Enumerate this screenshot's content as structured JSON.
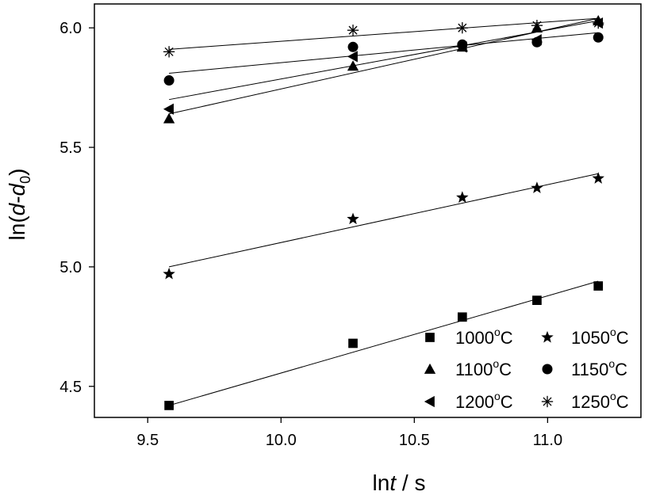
{
  "chart_data": {
    "type": "scatter",
    "xlabel": {
      "prefix": "ln",
      "var": "t",
      "suffix": " / s"
    },
    "ylabel": {
      "prefix": "ln(",
      "var1": "d",
      "mid": "-",
      "var2": "d",
      "sub": "0",
      "suffix": ")"
    },
    "xlim": [
      9.3,
      11.35
    ],
    "ylim": [
      4.37,
      6.1
    ],
    "x_ticks": [
      9.5,
      10.0,
      10.5,
      11.0
    ],
    "x_tick_labels": [
      "9.5",
      "10.0",
      "10.5",
      "11.0"
    ],
    "y_ticks": [
      4.5,
      5.0,
      5.5,
      6.0
    ],
    "y_tick_labels": [
      "4.5",
      "5.0",
      "5.5",
      "6.0"
    ],
    "grid": false,
    "legend_position": "bottom-right",
    "series": [
      {
        "name": "1000°C",
        "label": {
          "num": "1000",
          "deg": "o",
          "unit": "C"
        },
        "marker": "square",
        "x": [
          9.58,
          10.27,
          10.68,
          10.96,
          11.19
        ],
        "y": [
          4.42,
          4.68,
          4.79,
          4.86,
          4.92
        ],
        "fit": {
          "x": [
            9.58,
            11.19
          ],
          "y": [
            4.42,
            4.94
          ]
        }
      },
      {
        "name": "1050°C",
        "label": {
          "num": "1050",
          "deg": "o",
          "unit": "C"
        },
        "marker": "star",
        "x": [
          9.58,
          10.27,
          10.68,
          10.96,
          11.19
        ],
        "y": [
          4.97,
          5.2,
          5.29,
          5.33,
          5.37
        ],
        "fit": {
          "x": [
            9.58,
            11.19
          ],
          "y": [
            5.0,
            5.39
          ]
        }
      },
      {
        "name": "1100°C",
        "label": {
          "num": "1100",
          "deg": "o",
          "unit": "C"
        },
        "marker": "triangle",
        "x": [
          9.58,
          10.27,
          10.68,
          10.96,
          11.19
        ],
        "y": [
          5.62,
          5.84,
          5.92,
          6.0,
          6.03
        ],
        "fit": {
          "x": [
            9.58,
            11.19
          ],
          "y": [
            5.64,
            6.04
          ]
        }
      },
      {
        "name": "1150°C",
        "label": {
          "num": "1150",
          "deg": "o",
          "unit": "C"
        },
        "marker": "circle",
        "x": [
          9.58,
          10.27,
          10.68,
          10.96,
          11.19
        ],
        "y": [
          5.78,
          5.92,
          5.93,
          5.94,
          5.96
        ],
        "fit": {
          "x": [
            9.58,
            11.19
          ],
          "y": [
            5.81,
            5.98
          ]
        }
      },
      {
        "name": "1200°C",
        "label": {
          "num": "1200",
          "deg": "o",
          "unit": "C"
        },
        "marker": "triangle-left",
        "x": [
          9.58,
          10.27,
          10.68,
          10.96,
          11.19
        ],
        "y": [
          5.66,
          5.88,
          5.92,
          5.95,
          6.02
        ],
        "fit": {
          "x": [
            9.58,
            11.19
          ],
          "y": [
            5.7,
            6.03
          ]
        }
      },
      {
        "name": "1250°C",
        "label": {
          "num": "1250",
          "deg": "o",
          "unit": "C"
        },
        "marker": "asterisk",
        "x": [
          9.58,
          10.27,
          10.68,
          10.96,
          11.19
        ],
        "y": [
          5.9,
          5.99,
          6.0,
          6.01,
          6.02
        ],
        "fit": {
          "x": [
            9.58,
            11.19
          ],
          "y": [
            5.91,
            6.04
          ]
        }
      }
    ]
  }
}
